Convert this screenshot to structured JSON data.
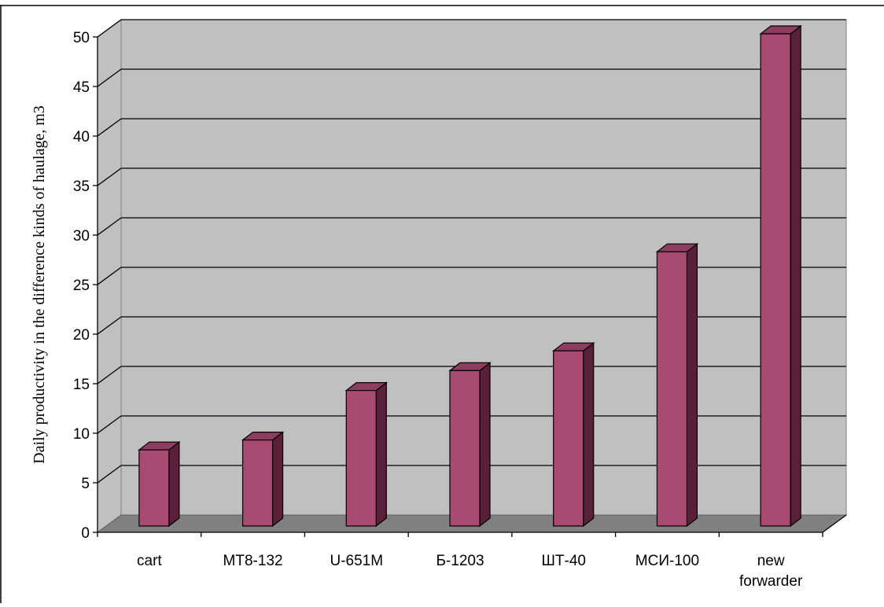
{
  "chart_data": {
    "type": "bar",
    "title": "",
    "xlabel": "",
    "ylabel": "Daily productivity  in the difference kinds of haulage, m3",
    "ylim": [
      0,
      50
    ],
    "yticks": [
      0,
      5,
      10,
      15,
      20,
      25,
      30,
      35,
      40,
      45,
      50
    ],
    "ytick_labels": [
      "0",
      "5",
      "10",
      "15",
      "20",
      "25",
      "30",
      "35",
      "40",
      "45",
      "50"
    ],
    "categories": [
      [
        "cart"
      ],
      [
        "MT8-132"
      ],
      [
        "U-651M"
      ],
      [
        "Б-1203"
      ],
      [
        "ШТ-40"
      ],
      [
        "МСИ-100"
      ],
      [
        "new",
        "forwarder"
      ]
    ],
    "values": [
      8,
      9,
      14,
      16,
      18,
      28,
      50
    ],
    "grid": true,
    "legend": "none",
    "style": "3d-column",
    "colors": {
      "bar_front": "#a94a73",
      "bar_side": "#5a1f39",
      "bar_top": "#8d3d60",
      "wall": "#c0c0c0",
      "floor": "#808080",
      "grid": "#000000"
    }
  }
}
